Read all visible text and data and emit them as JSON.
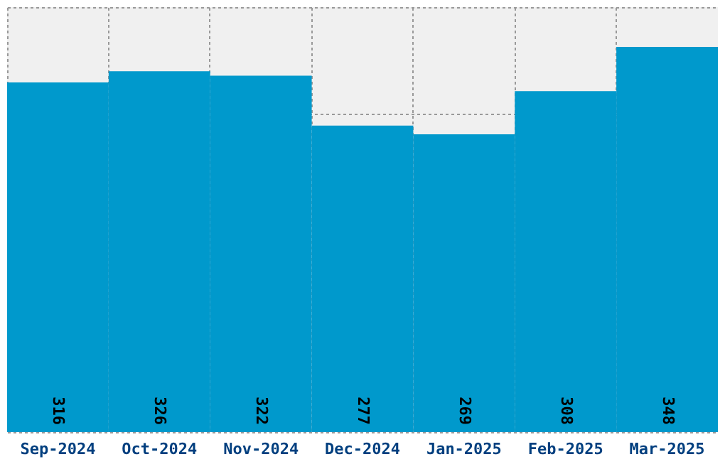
{
  "chart_data": {
    "type": "bar",
    "categories": [
      "Sep-2024",
      "Oct-2024",
      "Nov-2024",
      "Dec-2024",
      "Jan-2025",
      "Feb-2025",
      "Mar-2025"
    ],
    "values": [
      316,
      326,
      322,
      277,
      269,
      308,
      348
    ],
    "color": "#0099cc",
    "ylim": [
      0,
      384
    ],
    "yticks": [
      {
        "value": 0,
        "label": null
      },
      {
        "value": 96,
        "label": null
      },
      {
        "value": 192,
        "label": null
      },
      {
        "value": 288,
        "label": null
      },
      {
        "value": 384,
        "label": null
      }
    ],
    "tick_labels": "x",
    "grid": true,
    "data_labels": true
  }
}
